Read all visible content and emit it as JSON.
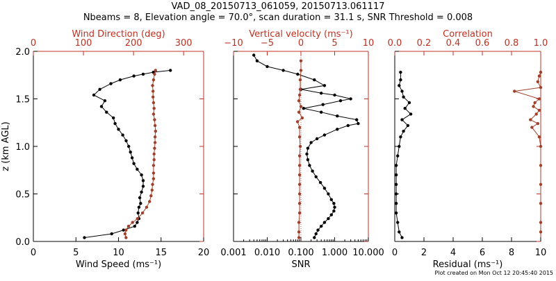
{
  "figure": {
    "title_line1": "VAD_08_20150713_061059, 20150713.061117",
    "title_line2": "Nbeams = 8, Elevation angle = 70.0°, scan duration = 31.1 s, SNR Threshold = 0.008",
    "credit": "Plot created on Mon Oct 12 20:45:40 2015"
  },
  "colors": {
    "black": "#000000",
    "red": "#c03020",
    "series2": "#a0402a"
  },
  "chart_data": [
    {
      "type": "line",
      "ylabel": "z (km AGL)",
      "ylim": [
        0.0,
        2.0
      ],
      "yticks": [
        "0.0",
        "0.5",
        "1.0",
        "1.5",
        "2.0"
      ],
      "bottom_axis": {
        "label": "Wind Speed (ms⁻¹)",
        "range": [
          0,
          20
        ],
        "ticks": [
          "0",
          "5",
          "10",
          "15",
          "20"
        ]
      },
      "top_axis": {
        "label": "Wind Direction (deg)",
        "range": [
          0,
          340
        ],
        "ticks": [
          "0",
          "100",
          "200",
          "300"
        ]
      },
      "series": [
        {
          "axis": "bottom",
          "color": "#000000",
          "points": [
            [
              6.0,
              0.04
            ],
            [
              9.2,
              0.08
            ],
            [
              10.6,
              0.12
            ],
            [
              11.9,
              0.16
            ],
            [
              12.2,
              0.2
            ],
            [
              12.4,
              0.24
            ],
            [
              12.3,
              0.3
            ],
            [
              12.4,
              0.36
            ],
            [
              12.6,
              0.4
            ],
            [
              12.5,
              0.46
            ],
            [
              12.7,
              0.52
            ],
            [
              12.9,
              0.58
            ],
            [
              12.9,
              0.64
            ],
            [
              12.7,
              0.7
            ],
            [
              12.2,
              0.76
            ],
            [
              11.8,
              0.82
            ],
            [
              11.6,
              0.88
            ],
            [
              11.4,
              0.94
            ],
            [
              11.2,
              1.0
            ],
            [
              10.9,
              1.06
            ],
            [
              10.5,
              1.12
            ],
            [
              10.0,
              1.18
            ],
            [
              9.6,
              1.24
            ],
            [
              9.4,
              1.3
            ],
            [
              8.6,
              1.36
            ],
            [
              8.0,
              1.42
            ],
            [
              8.4,
              1.48
            ],
            [
              7.1,
              1.54
            ],
            [
              7.8,
              1.6
            ],
            [
              9.1,
              1.66
            ],
            [
              10.2,
              1.7
            ],
            [
              11.8,
              1.74
            ],
            [
              12.9,
              1.76
            ],
            [
              14.1,
              1.78
            ],
            [
              16.1,
              1.8
            ]
          ]
        },
        {
          "axis": "top",
          "color": "#a0402a",
          "points": [
            [
              185,
              0.04
            ],
            [
              183,
              0.08
            ],
            [
              185,
              0.12
            ],
            [
              190,
              0.16
            ],
            [
              198,
              0.2
            ],
            [
              208,
              0.24
            ],
            [
              218,
              0.3
            ],
            [
              226,
              0.36
            ],
            [
              232,
              0.42
            ],
            [
              235,
              0.48
            ],
            [
              237,
              0.54
            ],
            [
              238,
              0.6
            ],
            [
              240,
              0.66
            ],
            [
              240,
              0.72
            ],
            [
              240,
              0.8
            ],
            [
              241,
              0.86
            ],
            [
              241,
              0.92
            ],
            [
              242,
              0.98
            ],
            [
              243,
              1.04
            ],
            [
              243,
              1.1
            ],
            [
              244,
              1.16
            ],
            [
              243,
              1.22
            ],
            [
              242,
              1.28
            ],
            [
              240,
              1.34
            ],
            [
              241,
              1.4
            ],
            [
              240,
              1.46
            ],
            [
              239,
              1.52
            ],
            [
              239,
              1.58
            ],
            [
              238,
              1.64
            ],
            [
              240,
              1.7
            ],
            [
              242,
              1.76
            ],
            [
              244,
              1.8
            ]
          ]
        }
      ]
    },
    {
      "type": "line",
      "ylim": [
        0.0,
        2.0
      ],
      "bottom_axis": {
        "label": "SNR",
        "range": [
          0.001,
          10.0
        ],
        "scale": "log",
        "ticks": [
          "0.001",
          "0.010",
          "0.100",
          "1.000",
          "10.000"
        ]
      },
      "top_axis": {
        "label": "Vertical velocity (ms⁻¹)",
        "range": [
          -10,
          10
        ],
        "ticks": [
          "−10",
          "−5",
          "0",
          "5",
          "10"
        ]
      },
      "series": [
        {
          "axis": "bottom",
          "color": "#000000",
          "points": [
            [
              0.25,
              0.04
            ],
            [
              0.28,
              0.08
            ],
            [
              0.32,
              0.12
            ],
            [
              0.4,
              0.16
            ],
            [
              0.5,
              0.2
            ],
            [
              0.65,
              0.24
            ],
            [
              0.8,
              0.28
            ],
            [
              0.95,
              0.32
            ],
            [
              1.0,
              0.36
            ],
            [
              0.95,
              0.4
            ],
            [
              0.8,
              0.44
            ],
            [
              0.65,
              0.5
            ],
            [
              0.5,
              0.56
            ],
            [
              0.38,
              0.62
            ],
            [
              0.28,
              0.68
            ],
            [
              0.22,
              0.74
            ],
            [
              0.18,
              0.8
            ],
            [
              0.16,
              0.86
            ],
            [
              0.15,
              0.92
            ],
            [
              0.16,
              0.98
            ],
            [
              0.2,
              1.04
            ],
            [
              0.3,
              1.08
            ],
            [
              0.5,
              1.12
            ],
            [
              1.2,
              1.18
            ],
            [
              2.5,
              1.22
            ],
            [
              5.0,
              1.24
            ],
            [
              4.5,
              1.28
            ],
            [
              1.2,
              1.32
            ],
            [
              0.4,
              1.36
            ],
            [
              0.12,
              1.4
            ],
            [
              0.45,
              1.44
            ],
            [
              1.5,
              1.48
            ],
            [
              3.0,
              1.5
            ],
            [
              1.0,
              1.54
            ],
            [
              0.4,
              1.56
            ],
            [
              0.1,
              1.6
            ],
            [
              0.5,
              1.64
            ],
            [
              0.25,
              1.7
            ],
            [
              0.08,
              1.76
            ],
            [
              0.03,
              1.8
            ],
            [
              0.01,
              1.84
            ],
            [
              0.005,
              1.9
            ],
            [
              0.004,
              1.96
            ]
          ]
        },
        {
          "axis": "top",
          "color": "#a0402a",
          "points": [
            [
              -0.3,
              0.04
            ],
            [
              -0.3,
              0.1
            ],
            [
              -0.3,
              0.2
            ],
            [
              -0.2,
              0.3
            ],
            [
              -0.2,
              0.4
            ],
            [
              -0.2,
              0.5
            ],
            [
              -0.2,
              0.6
            ],
            [
              -0.2,
              0.7
            ],
            [
              -0.2,
              0.8
            ],
            [
              -0.2,
              0.9
            ],
            [
              -0.1,
              1.0
            ],
            [
              -0.2,
              1.1
            ],
            [
              -0.2,
              1.2
            ],
            [
              -0.5,
              1.26
            ],
            [
              0.2,
              1.3
            ],
            [
              -0.3,
              1.36
            ],
            [
              0.0,
              1.42
            ],
            [
              -0.3,
              1.48
            ],
            [
              -0.2,
              1.54
            ],
            [
              -0.1,
              1.6
            ],
            [
              -0.1,
              1.7
            ],
            [
              0.0,
              1.8
            ],
            [
              0.0,
              1.9
            ]
          ]
        }
      ]
    },
    {
      "type": "line",
      "ylim": [
        0.0,
        2.0
      ],
      "bottom_axis": {
        "label": "Residual (ms⁻¹)",
        "range": [
          0,
          10
        ],
        "ticks": [
          "0",
          "2",
          "4",
          "6",
          "8",
          "10"
        ]
      },
      "top_axis": {
        "label": "Correlation",
        "range": [
          0.0,
          1.0
        ],
        "ticks": [
          "0.0",
          "0.2",
          "0.4",
          "0.6",
          "0.8",
          "1.0"
        ]
      },
      "series": [
        {
          "axis": "bottom",
          "color": "#000000",
          "points": [
            [
              0.5,
              0.04
            ],
            [
              0.3,
              0.1
            ],
            [
              0.2,
              0.2
            ],
            [
              0.1,
              0.3
            ],
            [
              0.1,
              0.4
            ],
            [
              0.1,
              0.5
            ],
            [
              0.1,
              0.6
            ],
            [
              0.1,
              0.7
            ],
            [
              0.1,
              0.8
            ],
            [
              0.2,
              0.9
            ],
            [
              0.3,
              1.0
            ],
            [
              0.4,
              1.1
            ],
            [
              0.6,
              1.16
            ],
            [
              0.9,
              1.22
            ],
            [
              0.5,
              1.28
            ],
            [
              1.1,
              1.34
            ],
            [
              0.7,
              1.4
            ],
            [
              1.0,
              1.46
            ],
            [
              0.6,
              1.52
            ],
            [
              0.5,
              1.58
            ],
            [
              0.3,
              1.64
            ],
            [
              0.4,
              1.7
            ],
            [
              0.4,
              1.78
            ]
          ]
        },
        {
          "axis": "top",
          "color": "#a0402a",
          "points": [
            [
              1.0,
              0.1
            ],
            [
              1.0,
              0.2
            ],
            [
              1.0,
              0.4
            ],
            [
              1.0,
              0.6
            ],
            [
              1.0,
              0.8
            ],
            [
              1.0,
              1.0
            ],
            [
              0.99,
              1.1
            ],
            [
              0.94,
              1.2
            ],
            [
              0.98,
              1.24
            ],
            [
              0.93,
              1.28
            ],
            [
              0.97,
              1.34
            ],
            [
              0.99,
              1.38
            ],
            [
              0.95,
              1.42
            ],
            [
              0.96,
              1.46
            ],
            [
              0.99,
              1.5
            ],
            [
              0.82,
              1.58
            ],
            [
              1.0,
              1.62
            ],
            [
              0.98,
              1.68
            ],
            [
              0.99,
              1.74
            ],
            [
              1.0,
              1.78
            ]
          ]
        }
      ]
    }
  ]
}
